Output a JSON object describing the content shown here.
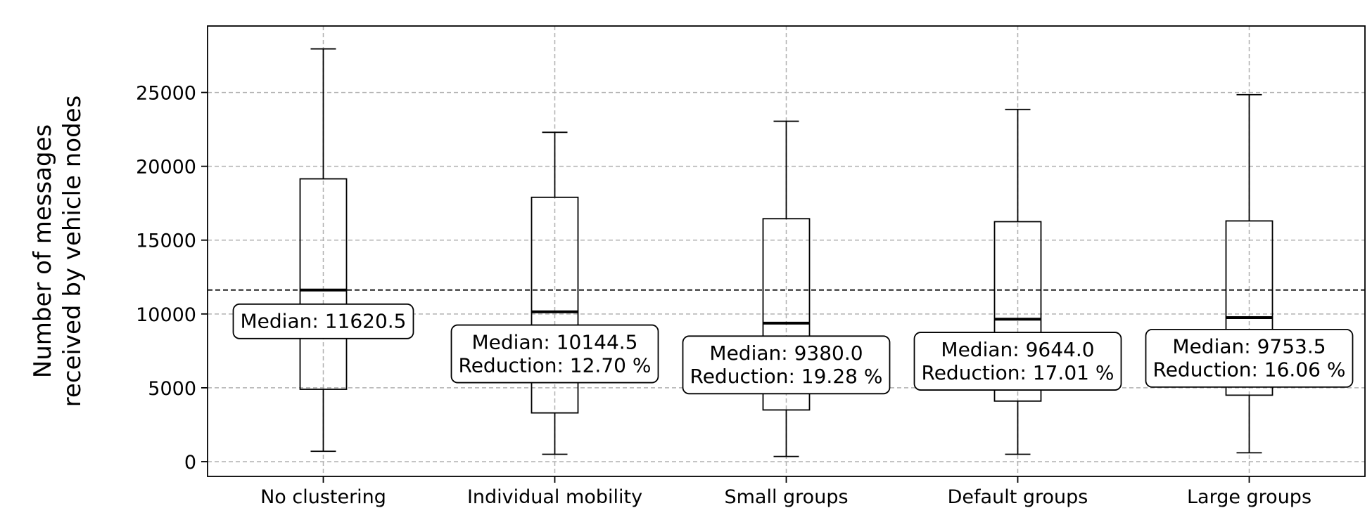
{
  "chart_data": {
    "type": "box",
    "title": "",
    "xlabel": "",
    "ylabel_lines": [
      "Number of messages",
      "received by vehicle nodes"
    ],
    "ylim": [
      -1000,
      29500
    ],
    "yticks": [
      0,
      5000,
      10000,
      15000,
      20000,
      25000
    ],
    "grid": true,
    "reference_line": {
      "y": 11620.5,
      "style": "dashed"
    },
    "categories": [
      "No clustering",
      "Individual mobility",
      "Small groups",
      "Default groups",
      "Large groups"
    ],
    "boxes": [
      {
        "whisker_low": 700,
        "q1": 4900,
        "median": 11620.5,
        "q3": 19150,
        "whisker_high": 27950,
        "annotation": [
          "Median: 11620.5"
        ],
        "annotation_y": 9500
      },
      {
        "whisker_low": 500,
        "q1": 3300,
        "median": 10144.5,
        "q3": 17900,
        "whisker_high": 22300,
        "annotation": [
          "Median: 10144.5",
          "Reduction: 12.70 %"
        ],
        "annotation_y": 7300
      },
      {
        "whisker_low": 350,
        "q1": 3500,
        "median": 9380.0,
        "q3": 16450,
        "whisker_high": 23050,
        "annotation": [
          "Median: 9380.0",
          "Reduction: 19.28 %"
        ],
        "annotation_y": 6550
      },
      {
        "whisker_low": 500,
        "q1": 4100,
        "median": 9644.0,
        "q3": 16250,
        "whisker_high": 23850,
        "annotation": [
          "Median: 9644.0",
          "Reduction: 17.01 %"
        ],
        "annotation_y": 6800
      },
      {
        "whisker_low": 600,
        "q1": 4500,
        "median": 9753.5,
        "q3": 16300,
        "whisker_high": 24850,
        "annotation": [
          "Median: 9753.5",
          "Reduction: 16.06 %"
        ],
        "annotation_y": 7000
      }
    ]
  }
}
